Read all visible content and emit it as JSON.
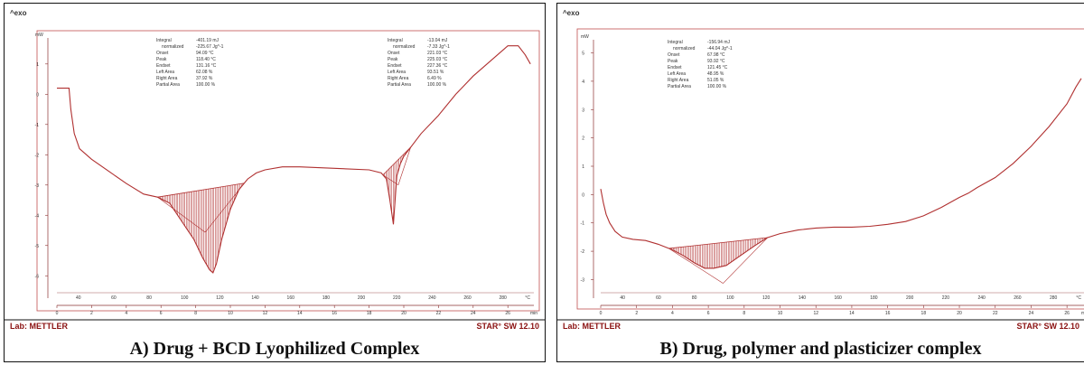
{
  "panels": [
    {
      "caption": "A) Drug + BCD Lyophilized Complex",
      "exo_label": "^exo",
      "y_unit": "mW",
      "x_unit": "min",
      "temp_unit": "°C",
      "footer_left": "Lab: METTLER",
      "footer_right": "STAR° SW 12.10",
      "annotations": [
        {
          "lines": [
            [
              "Integral",
              "-401.19 mJ"
            ],
            [
              "normalized",
              "-225.67 Jg^-1"
            ],
            [
              "Onset",
              "94.09 °C"
            ],
            [
              "Peak",
              "118.40 °C"
            ],
            [
              "Endset",
              "131.16 °C"
            ],
            [
              "Left Area",
              "62.08 %"
            ],
            [
              "Right Area",
              "37.92 %"
            ],
            [
              "Partial Area",
              "100.00 %"
            ]
          ]
        },
        {
          "lines": [
            [
              "Integral",
              "-13.04 mJ"
            ],
            [
              "normalized",
              "-7.33 Jg^-1"
            ],
            [
              "Onset",
              "221.03 °C"
            ],
            [
              "Peak",
              "225.03 °C"
            ],
            [
              "Endset",
              "227.36 °C"
            ],
            [
              "Left Area",
              "93.51 %"
            ],
            [
              "Right Area",
              "6.49 %"
            ],
            [
              "Partial Area",
              "100.00 %"
            ]
          ]
        }
      ]
    },
    {
      "caption": "B) Drug, polymer and plasticizer complex",
      "exo_label": "^exo",
      "y_unit": "mW",
      "x_unit": "min",
      "temp_unit": "°C",
      "footer_left": "Lab: METTLER",
      "footer_right": "STAR° SW 12.10",
      "annotations": [
        {
          "lines": [
            [
              "Integral",
              "-156.94 mJ"
            ],
            [
              "normalized",
              "-44.04 Jg^-1"
            ],
            [
              "Onset",
              "67.98 °C"
            ],
            [
              "Peak",
              "93.92 °C"
            ],
            [
              "Endset",
              "121.45 °C"
            ],
            [
              "Left Area",
              "48.95 %"
            ],
            [
              "Right Area",
              "51.05 %"
            ],
            [
              "Partial Area",
              "100.00 %"
            ]
          ]
        }
      ]
    }
  ],
  "chart_data": [
    {
      "type": "line",
      "x_min_ticks": [
        0,
        2,
        4,
        6,
        8,
        10,
        12,
        14,
        16,
        18,
        20,
        22,
        24,
        26
      ],
      "temp_ticks": [
        40,
        60,
        80,
        100,
        120,
        140,
        160,
        180,
        200,
        220,
        240,
        260,
        280
      ],
      "y_ticks": [
        1,
        0,
        -1,
        -2,
        -3,
        -4,
        -5,
        -6
      ],
      "xlim": [
        0,
        27.5
      ],
      "ylim": [
        -6.5,
        1.8
      ],
      "color": "#b03030",
      "x": [
        0,
        0.7,
        0.8,
        1.0,
        1.3,
        1.6,
        2.0,
        3,
        4,
        5,
        5.8,
        6.5,
        7.2,
        7.9,
        8.4,
        8.8,
        9.0,
        9.2,
        9.5,
        10.0,
        10.5,
        11.0,
        11.5,
        12,
        13,
        14,
        16,
        18,
        18.7,
        19.0,
        19.2,
        19.4,
        19.6,
        19.8,
        20.0,
        20.4,
        21,
        22,
        23,
        24,
        25,
        26,
        26.6,
        27.0,
        27.3
      ],
      "y": [
        0.2,
        0.2,
        -0.5,
        -1.3,
        -1.8,
        -1.95,
        -2.15,
        -2.55,
        -2.95,
        -3.3,
        -3.4,
        -3.6,
        -4.2,
        -4.8,
        -5.4,
        -5.8,
        -5.9,
        -5.6,
        -4.8,
        -3.8,
        -3.15,
        -2.8,
        -2.6,
        -2.5,
        -2.4,
        -2.4,
        -2.45,
        -2.5,
        -2.6,
        -2.8,
        -3.5,
        -4.3,
        -2.7,
        -2.3,
        -2.05,
        -1.75,
        -1.3,
        -0.7,
        0.0,
        0.6,
        1.1,
        1.6,
        1.6,
        1.3,
        1.0
      ],
      "peak_fill_min": [
        5.8,
        10.8
      ],
      "peak_fill_min_2": [
        18.8,
        20.4
      ]
    },
    {
      "type": "line",
      "x_min_ticks": [
        0,
        2,
        4,
        6,
        8,
        10,
        12,
        14,
        16,
        18,
        20,
        22,
        24,
        26
      ],
      "temp_ticks": [
        40,
        60,
        80,
        100,
        120,
        140,
        160,
        180,
        200,
        220,
        240,
        260,
        280
      ],
      "y_ticks": [
        5,
        4,
        3,
        2,
        1,
        0,
        -1,
        -2,
        -3
      ],
      "xlim": [
        0,
        27
      ],
      "ylim": [
        -3.4,
        5.4
      ],
      "color": "#b03030",
      "x": [
        0,
        0.15,
        0.3,
        0.5,
        0.8,
        1.2,
        1.8,
        2.5,
        3.2,
        4.0,
        4.6,
        5.2,
        5.8,
        6.3,
        7.0,
        7.8,
        8.6,
        9.3,
        10.0,
        11,
        12,
        13,
        14,
        15,
        16,
        17,
        18,
        19,
        20,
        20.5,
        21,
        22,
        23,
        24,
        25,
        26,
        26.5,
        26.8
      ],
      "y": [
        0.2,
        -0.3,
        -0.7,
        -1.0,
        -1.3,
        -1.5,
        -1.58,
        -1.62,
        -1.75,
        -1.95,
        -2.15,
        -2.4,
        -2.6,
        -2.6,
        -2.5,
        -2.15,
        -1.8,
        -1.52,
        -1.38,
        -1.25,
        -1.18,
        -1.15,
        -1.15,
        -1.12,
        -1.05,
        -0.95,
        -0.75,
        -0.45,
        -0.1,
        0.05,
        0.25,
        0.6,
        1.1,
        1.7,
        2.4,
        3.2,
        3.8,
        4.1
      ],
      "peak_fill_min": [
        3.8,
        9.3
      ]
    }
  ]
}
